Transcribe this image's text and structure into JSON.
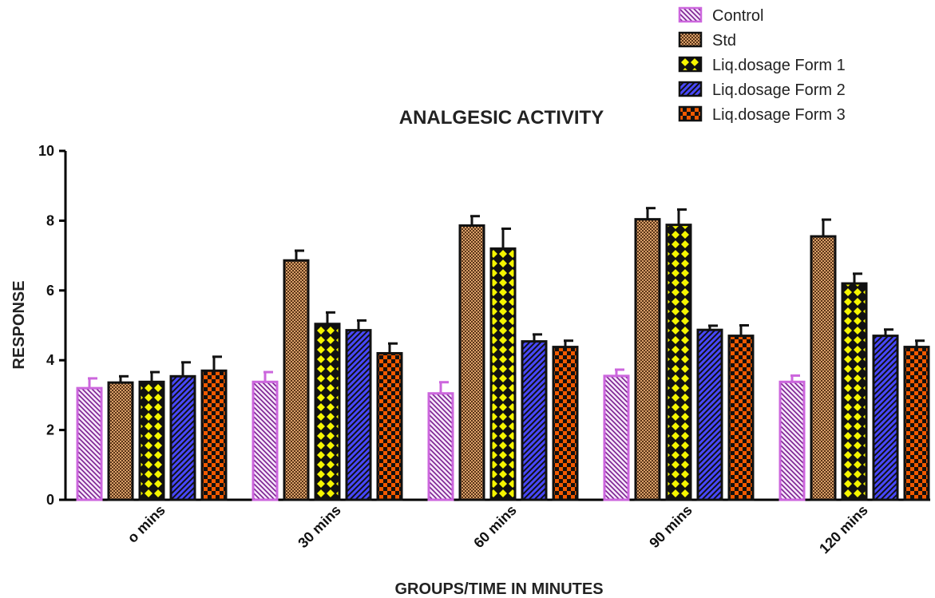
{
  "chart_data": {
    "type": "bar",
    "title": "ANALGESIC ACTIVITY",
    "xlabel": "GROUPS/TIME IN MINUTES",
    "ylabel": "RESPONSE",
    "ylim": [
      0,
      10
    ],
    "yticks": [
      0,
      2,
      4,
      6,
      8,
      10
    ],
    "categories": [
      "o mins",
      "30 mins",
      "60 mins",
      "90 mins",
      "120 mins"
    ],
    "legend_position": "top-right",
    "series": [
      {
        "name": "Control",
        "color": "#CC66DD",
        "pattern": "diagonal-hatch-light",
        "values": [
          3.2,
          3.38,
          3.05,
          3.55,
          3.38
        ],
        "errors": [
          0.28,
          0.28,
          0.32,
          0.18,
          0.18
        ]
      },
      {
        "name": "Std",
        "color": "#B87740",
        "pattern": "checker-fine",
        "values": [
          3.36,
          6.86,
          7.86,
          8.04,
          7.55
        ],
        "errors": [
          0.18,
          0.28,
          0.27,
          0.32,
          0.48
        ]
      },
      {
        "name": "Liq.dosage Form 1",
        "color": "#F5F500",
        "pattern": "crosshatch",
        "values": [
          3.38,
          5.04,
          7.2,
          7.88,
          6.2
        ],
        "errors": [
          0.28,
          0.33,
          0.57,
          0.44,
          0.28
        ]
      },
      {
        "name": "Liq.dosage Form 2",
        "color": "#4040FF",
        "pattern": "diagonal-hatch",
        "values": [
          3.54,
          4.86,
          4.54,
          4.87,
          4.7
        ],
        "errors": [
          0.4,
          0.28,
          0.2,
          0.12,
          0.18
        ]
      },
      {
        "name": "Liq.dosage Form 3",
        "color": "#F25A00",
        "pattern": "checker-coarse",
        "values": [
          3.7,
          4.2,
          4.38,
          4.7,
          4.38
        ],
        "errors": [
          0.4,
          0.28,
          0.18,
          0.3,
          0.18
        ]
      }
    ]
  }
}
